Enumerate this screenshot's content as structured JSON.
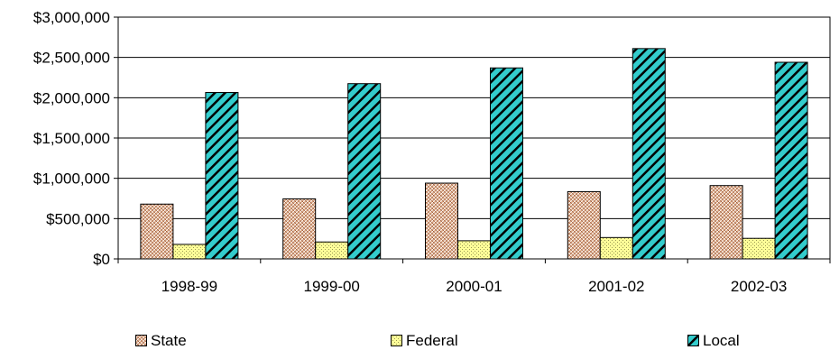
{
  "chart_data": {
    "type": "bar",
    "categories": [
      "1998-99",
      "1999-00",
      "2000-01",
      "2001-02",
      "2002-03"
    ],
    "series": [
      {
        "name": "State",
        "values": [
          680000,
          745000,
          940000,
          835000,
          910000
        ],
        "color": "#e8b896",
        "pattern": "weave"
      },
      {
        "name": "Federal",
        "values": [
          180000,
          210000,
          225000,
          265000,
          255000
        ],
        "color": "#ffff99",
        "pattern": "dots"
      },
      {
        "name": "Local",
        "values": [
          2065000,
          2175000,
          2370000,
          2610000,
          2440000
        ],
        "color": "#33cccc",
        "pattern": "diagonal"
      }
    ],
    "yticks": [
      "$0",
      "$500,000",
      "$1,000,000",
      "$1,500,000",
      "$2,000,000",
      "$2,500,000",
      "$3,000,000"
    ],
    "ylim": [
      0,
      3000000
    ],
    "grid": true,
    "legend_position": "bottom"
  }
}
